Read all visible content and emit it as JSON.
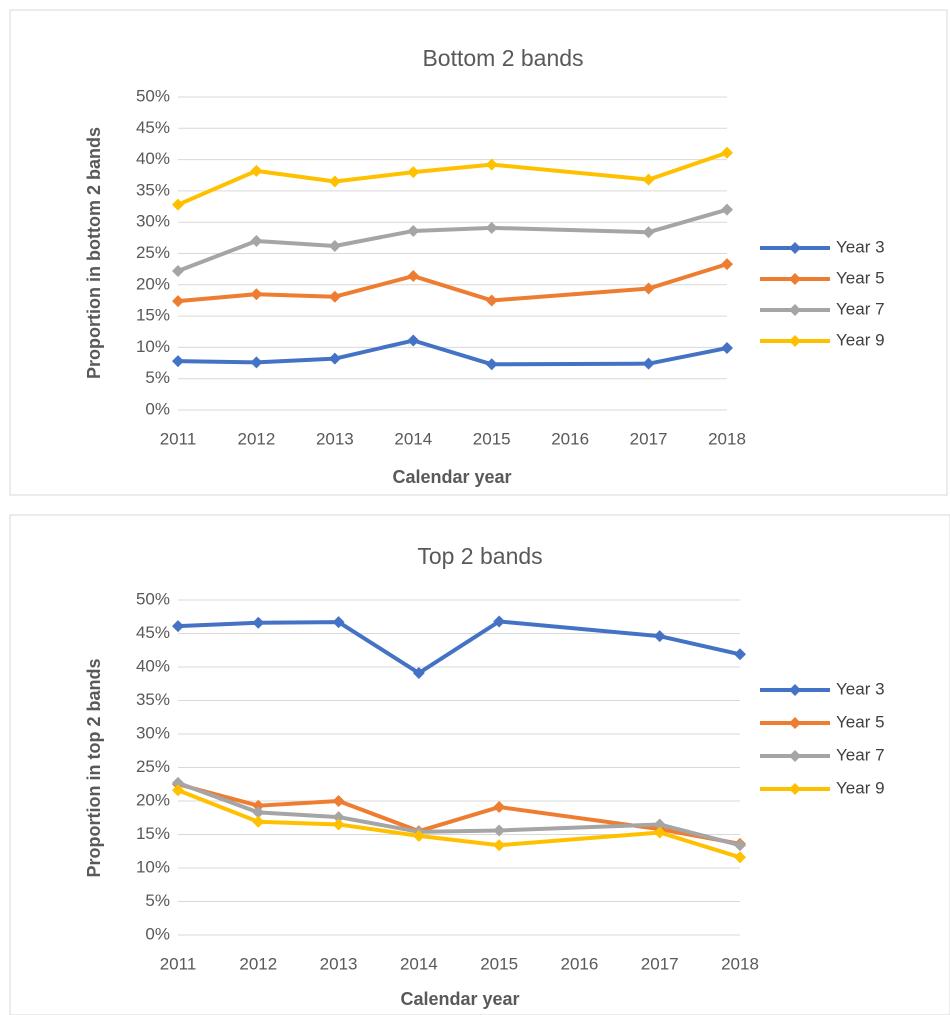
{
  "chart_data": [
    {
      "type": "line",
      "title": "Bottom 2 bands",
      "x_label": "Calendar year",
      "y_label": "Proportion in bottom 2 bands",
      "x": [
        2011,
        2012,
        2013,
        2014,
        2015,
        2017,
        2018
      ],
      "xlim": [
        2011,
        2018
      ],
      "xticks": [
        2011,
        2012,
        2013,
        2014,
        2015,
        2016,
        2017,
        2018
      ],
      "ylim": [
        0,
        50
      ],
      "yticks": [
        {
          "value": 0,
          "label": "0%"
        },
        {
          "value": 5,
          "label": "5%"
        },
        {
          "value": 10,
          "label": "10%"
        },
        {
          "value": 15,
          "label": "15%"
        },
        {
          "value": 20,
          "label": "20%"
        },
        {
          "value": 25,
          "label": "25%"
        },
        {
          "value": 30,
          "label": "30%"
        },
        {
          "value": 35,
          "label": "35%"
        },
        {
          "value": 40,
          "label": "40%"
        },
        {
          "value": 45,
          "label": "45%"
        },
        {
          "value": 50,
          "label": "50%"
        }
      ],
      "grid": true,
      "legend": "right",
      "series": [
        {
          "name": "Year 3",
          "color": "#4472c4",
          "values": [
            7.8,
            7.6,
            8.2,
            11.1,
            7.3,
            7.4,
            9.9
          ]
        },
        {
          "name": "Year 5",
          "color": "#ed7d31",
          "values": [
            17.4,
            18.5,
            18.1,
            21.4,
            17.5,
            19.4,
            23.3
          ]
        },
        {
          "name": "Year 7",
          "color": "#a5a5a5",
          "values": [
            22.2,
            27.0,
            26.2,
            28.6,
            29.1,
            28.4,
            32.0
          ]
        },
        {
          "name": "Year 9",
          "color": "#ffc000",
          "values": [
            32.8,
            38.2,
            36.5,
            38.0,
            39.2,
            36.8,
            41.1
          ]
        }
      ]
    },
    {
      "type": "line",
      "title": "Top 2 bands",
      "x_label": "Calendar year",
      "y_label": "Proportion in top 2 bands",
      "x": [
        2011,
        2012,
        2013,
        2014,
        2015,
        2017,
        2018
      ],
      "xlim": [
        2011,
        2018
      ],
      "xticks": [
        2011,
        2012,
        2013,
        2014,
        2015,
        2016,
        2017,
        2018
      ],
      "ylim": [
        0,
        50
      ],
      "yticks": [
        {
          "value": 0,
          "label": "0%"
        },
        {
          "value": 5,
          "label": "5%"
        },
        {
          "value": 10,
          "label": "10%"
        },
        {
          "value": 15,
          "label": "15%"
        },
        {
          "value": 20,
          "label": "20%"
        },
        {
          "value": 25,
          "label": "25%"
        },
        {
          "value": 30,
          "label": "30%"
        },
        {
          "value": 35,
          "label": "35%"
        },
        {
          "value": 40,
          "label": "40%"
        },
        {
          "value": 45,
          "label": "45%"
        },
        {
          "value": 50,
          "label": "50%"
        }
      ],
      "grid": true,
      "legend": "right",
      "series": [
        {
          "name": "Year 3",
          "color": "#4472c4",
          "values": [
            46.1,
            46.6,
            46.7,
            39.1,
            46.8,
            44.6,
            41.9
          ]
        },
        {
          "name": "Year 5",
          "color": "#ed7d31",
          "values": [
            22.5,
            19.3,
            20.0,
            15.5,
            19.1,
            15.8,
            13.6
          ]
        },
        {
          "name": "Year 7",
          "color": "#a5a5a5",
          "values": [
            22.7,
            18.3,
            17.6,
            15.4,
            15.6,
            16.5,
            13.4
          ]
        },
        {
          "name": "Year 9",
          "color": "#ffc000",
          "values": [
            21.6,
            16.9,
            16.5,
            14.8,
            13.4,
            15.3,
            11.6
          ]
        }
      ]
    }
  ]
}
